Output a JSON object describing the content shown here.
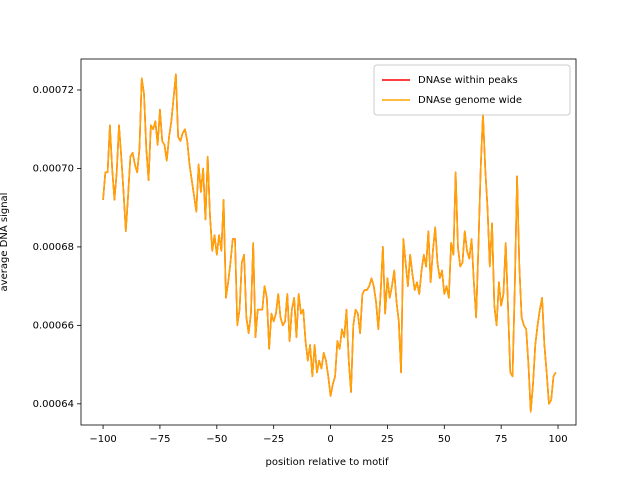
{
  "chart_data": {
    "type": "line",
    "xlabel": "position relative to motif",
    "ylabel": "average DNA signal",
    "x": [
      -100,
      -99,
      -98,
      -97,
      -96,
      -95,
      -94,
      -93,
      -92,
      -91,
      -90,
      -89,
      -88,
      -87,
      -86,
      -85,
      -84,
      -83,
      -82,
      -81,
      -80,
      -79,
      -78,
      -77,
      -76,
      -75,
      -74,
      -73,
      -72,
      -71,
      -70,
      -69,
      -68,
      -67,
      -66,
      -65,
      -64,
      -63,
      -62,
      -61,
      -60,
      -59,
      -58,
      -57,
      -56,
      -55,
      -54,
      -53,
      -52,
      -51,
      -50,
      -49,
      -48,
      -47,
      -46,
      -45,
      -44,
      -43,
      -42,
      -41,
      -40,
      -39,
      -38,
      -37,
      -36,
      -35,
      -34,
      -33,
      -32,
      -31,
      -30,
      -29,
      -28,
      -27,
      -26,
      -25,
      -24,
      -23,
      -22,
      -21,
      -20,
      -19,
      -18,
      -17,
      -16,
      -15,
      -14,
      -13,
      -12,
      -11,
      -10,
      -9,
      -8,
      -7,
      -6,
      -5,
      -4,
      -3,
      -2,
      -1,
      0,
      1,
      2,
      3,
      4,
      5,
      6,
      7,
      8,
      9,
      10,
      11,
      12,
      13,
      14,
      15,
      16,
      17,
      18,
      19,
      20,
      21,
      22,
      23,
      24,
      25,
      26,
      27,
      28,
      29,
      30,
      31,
      32,
      33,
      34,
      35,
      36,
      37,
      38,
      39,
      40,
      41,
      42,
      43,
      44,
      45,
      46,
      47,
      48,
      49,
      50,
      51,
      52,
      53,
      54,
      55,
      56,
      57,
      58,
      59,
      60,
      61,
      62,
      63,
      64,
      65,
      66,
      67,
      68,
      69,
      70,
      71,
      72,
      73,
      74,
      75,
      76,
      77,
      78,
      79,
      80,
      81,
      82,
      83,
      84,
      85,
      86,
      87,
      88,
      89,
      90,
      91,
      92,
      93,
      94,
      95,
      96,
      97,
      98,
      99
    ],
    "series": [
      {
        "name": "DNAse within peaks",
        "color": "#ff0000",
        "values": [
          0.000692,
          0.000699,
          0.000699,
          0.000711,
          0.0007,
          0.000692,
          0.000699,
          0.000711,
          0.000703,
          0.000694,
          0.000684,
          0.000693,
          0.000703,
          0.000704,
          0.000701,
          0.000699,
          0.000705,
          0.000723,
          0.000719,
          0.000705,
          0.000697,
          0.000711,
          0.00071,
          0.000712,
          0.000706,
          0.000715,
          0.000707,
          0.000706,
          0.000702,
          0.000708,
          0.000712,
          0.000718,
          0.000724,
          0.000708,
          0.000707,
          0.000709,
          0.00071,
          0.000707,
          0.000701,
          0.000697,
          0.000693,
          0.000689,
          0.000701,
          0.000694,
          0.0007,
          0.000687,
          0.000703,
          0.000688,
          0.000679,
          0.000683,
          0.000678,
          0.000683,
          0.000679,
          0.000692,
          0.000667,
          0.000671,
          0.000676,
          0.000682,
          0.000682,
          0.00066,
          0.000664,
          0.000676,
          0.000678,
          0.000662,
          0.000658,
          0.000663,
          0.000681,
          0.000657,
          0.000664,
          0.000664,
          0.000664,
          0.00067,
          0.000667,
          0.000654,
          0.000663,
          0.000661,
          0.000663,
          0.000668,
          0.000662,
          0.00066,
          0.000661,
          0.000668,
          0.000656,
          0.000664,
          0.000667,
          0.000657,
          0.000668,
          0.000663,
          0.000664,
          0.000656,
          0.000651,
          0.000655,
          0.000647,
          0.000655,
          0.000648,
          0.000651,
          0.000649,
          0.000653,
          0.000651,
          0.000647,
          0.000642,
          0.000645,
          0.000647,
          0.000656,
          0.000654,
          0.000659,
          0.000657,
          0.000664,
          0.000651,
          0.000643,
          0.00066,
          0.000664,
          0.000663,
          0.000658,
          0.000668,
          0.000669,
          0.000669,
          0.00067,
          0.000672,
          0.00067,
          0.000666,
          0.000659,
          0.000668,
          0.00068,
          0.000663,
          0.000672,
          0.000667,
          0.00067,
          0.000674,
          0.000666,
          0.000661,
          0.000648,
          0.000682,
          0.000676,
          0.00067,
          0.000678,
          0.000673,
          0.000669,
          0.000671,
          0.000668,
          0.000674,
          0.000678,
          0.000675,
          0.000684,
          0.000671,
          0.000679,
          0.000685,
          0.000676,
          0.000672,
          0.000674,
          0.000668,
          0.00067,
          0.000667,
          0.000681,
          0.000678,
          0.000699,
          0.00068,
          0.000675,
          0.000676,
          0.000684,
          0.000679,
          0.000677,
          0.000682,
          0.000671,
          0.000662,
          0.00068,
          0.0007,
          0.000714,
          0.0007,
          0.00069,
          0.000675,
          0.000686,
          0.000665,
          0.00066,
          0.000671,
          0.000665,
          0.000668,
          0.000681,
          0.000665,
          0.000648,
          0.000647,
          0.00067,
          0.000698,
          0.000675,
          0.000662,
          0.00066,
          0.000659,
          0.00065,
          0.000638,
          0.000645,
          0.000655,
          0.00066,
          0.000664,
          0.000667,
          0.000655,
          0.000648,
          0.00064,
          0.000641,
          0.000647,
          0.000648
        ]
      },
      {
        "name": "DNAse genome wide",
        "color": "#ffa500",
        "values": [
          0.000692,
          0.000699,
          0.000699,
          0.000711,
          0.0007,
          0.000692,
          0.000699,
          0.000711,
          0.000703,
          0.000694,
          0.000684,
          0.000693,
          0.000703,
          0.000704,
          0.000701,
          0.000699,
          0.000705,
          0.000723,
          0.000719,
          0.000705,
          0.000697,
          0.000711,
          0.00071,
          0.000712,
          0.000706,
          0.000715,
          0.000707,
          0.000706,
          0.000702,
          0.000708,
          0.000712,
          0.000718,
          0.000724,
          0.000708,
          0.000707,
          0.000709,
          0.00071,
          0.000707,
          0.000701,
          0.000697,
          0.000693,
          0.000689,
          0.000701,
          0.000694,
          0.0007,
          0.000687,
          0.000703,
          0.000688,
          0.000679,
          0.000683,
          0.000678,
          0.000683,
          0.000679,
          0.000692,
          0.000667,
          0.000671,
          0.000676,
          0.000682,
          0.000682,
          0.00066,
          0.000664,
          0.000676,
          0.000678,
          0.000662,
          0.000658,
          0.000663,
          0.000681,
          0.000657,
          0.000664,
          0.000664,
          0.000664,
          0.00067,
          0.000667,
          0.000654,
          0.000663,
          0.000661,
          0.000663,
          0.000668,
          0.000662,
          0.00066,
          0.000661,
          0.000668,
          0.000656,
          0.000664,
          0.000667,
          0.000657,
          0.000668,
          0.000663,
          0.000664,
          0.000656,
          0.000651,
          0.000655,
          0.000647,
          0.000655,
          0.000648,
          0.000651,
          0.000649,
          0.000653,
          0.000651,
          0.000647,
          0.000642,
          0.000645,
          0.000647,
          0.000656,
          0.000654,
          0.000659,
          0.000657,
          0.000664,
          0.000651,
          0.000643,
          0.00066,
          0.000664,
          0.000663,
          0.000658,
          0.000668,
          0.000669,
          0.000669,
          0.00067,
          0.000672,
          0.00067,
          0.000666,
          0.000659,
          0.000668,
          0.00068,
          0.000663,
          0.000672,
          0.000667,
          0.00067,
          0.000674,
          0.000666,
          0.000661,
          0.000648,
          0.000682,
          0.000676,
          0.00067,
          0.000678,
          0.000673,
          0.000669,
          0.000671,
          0.000668,
          0.000674,
          0.000678,
          0.000675,
          0.000684,
          0.000671,
          0.000679,
          0.000685,
          0.000676,
          0.000672,
          0.000674,
          0.000668,
          0.00067,
          0.000667,
          0.000681,
          0.000678,
          0.000699,
          0.00068,
          0.000675,
          0.000676,
          0.000684,
          0.000679,
          0.000677,
          0.000682,
          0.000671,
          0.000662,
          0.00068,
          0.0007,
          0.000714,
          0.0007,
          0.00069,
          0.000675,
          0.000686,
          0.000665,
          0.00066,
          0.000671,
          0.000665,
          0.000668,
          0.000681,
          0.000665,
          0.000648,
          0.000647,
          0.00067,
          0.000698,
          0.000675,
          0.000662,
          0.00066,
          0.000659,
          0.00065,
          0.000638,
          0.000645,
          0.000655,
          0.00066,
          0.000664,
          0.000667,
          0.000655,
          0.000648,
          0.00064,
          0.000641,
          0.000647,
          0.000648
        ]
      }
    ],
    "xlim": [
      -109.7,
      107.9
    ],
    "ylim": [
      0.0006346,
      0.0007279
    ],
    "xticks": [
      {
        "value": -100,
        "label": "−100"
      },
      {
        "value": -75,
        "label": "−75"
      },
      {
        "value": -50,
        "label": "−50"
      },
      {
        "value": -25,
        "label": "−25"
      },
      0,
      25,
      50,
      75,
      100
    ],
    "yticks": [
      0.00064,
      0.00066,
      0.00068,
      {
        "value": 0.0007,
        "label": "0.00070"
      },
      0.00072
    ],
    "legend": "upper right",
    "grid": false
  }
}
